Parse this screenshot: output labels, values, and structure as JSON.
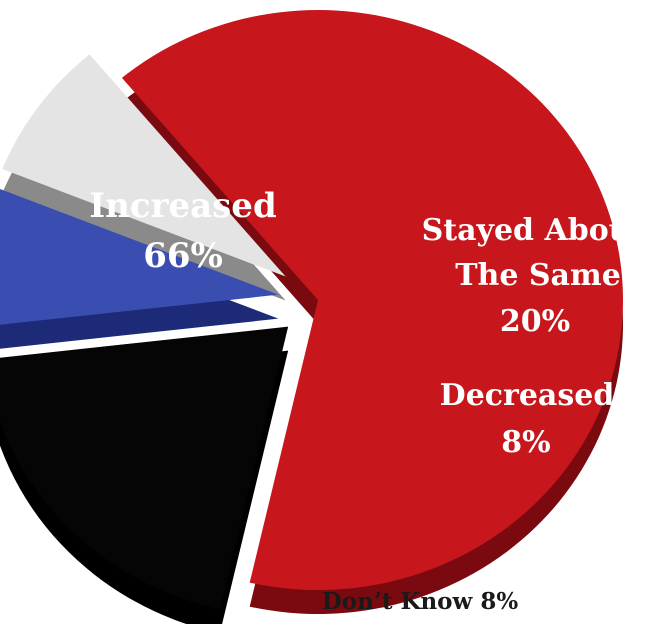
{
  "chart_data": {
    "type": "pie",
    "slices": [
      {
        "label": "Increased",
        "value": 66,
        "value_text": "66%",
        "color": "#c8161d",
        "side_color": "#7a0a0f",
        "text_color": "#ffffff"
      },
      {
        "label": "Stayed About The Same",
        "value": 20,
        "value_text": "20%",
        "color": "#050505",
        "side_color": "#000000",
        "text_color": "#ffffff"
      },
      {
        "label": "Decreased",
        "value": 8,
        "value_text": "8%",
        "color": "#3a4db0",
        "side_color": "#1c2a78",
        "text_color": "#ffffff"
      },
      {
        "label": "Don’t Know",
        "value": 8,
        "value_text": "8%",
        "color": "#e4e4e4",
        "side_color": "#8a8a8a",
        "text_color": "#1a1a1a"
      }
    ],
    "labels": {
      "increased": {
        "line1": "Increased",
        "line2": "66%"
      },
      "stayed": {
        "line1": "Stayed About",
        "line2": "The Same",
        "line3": "20%"
      },
      "decreased": {
        "line1": "Decreased",
        "line2": "8%"
      },
      "dont_know": "Don’t Know 8%"
    },
    "style": "3d-exploded"
  }
}
